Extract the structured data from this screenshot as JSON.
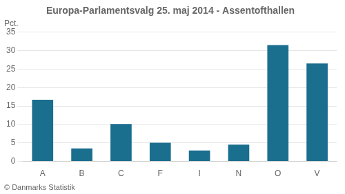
{
  "chart_data": {
    "type": "bar",
    "title": "Europa-Parlamentsvalg 25. maj 2014 - Assentofthallen",
    "ylabel": "Pct.",
    "footer": "© Danmarks Statistik",
    "categories": [
      "A",
      "B",
      "C",
      "F",
      "I",
      "N",
      "O",
      "V"
    ],
    "values": [
      16.7,
      3.5,
      10.1,
      5.0,
      2.9,
      4.5,
      31.5,
      26.5
    ],
    "color": "#1a6e8e",
    "ylim": [
      0,
      35
    ],
    "yticks": [
      0,
      5,
      10,
      15,
      20,
      25,
      30,
      35
    ],
    "grid": true
  }
}
